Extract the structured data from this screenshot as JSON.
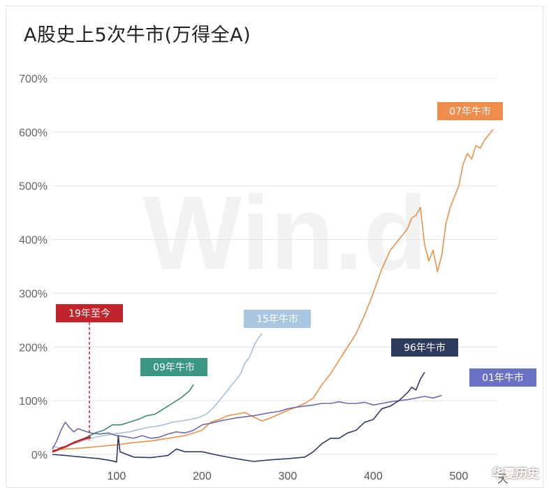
{
  "page": {
    "title": "A股史上5次牛市(万得全A)",
    "brand": "华夏历史",
    "watermark": "Win.d"
  },
  "chart_data": {
    "type": "line",
    "title": "A股史上5次牛市(万得全A)",
    "xlabel": "",
    "ylabel": "",
    "x_unit": "天",
    "xlim": [
      25,
      545
    ],
    "ylim": [
      -5,
      700
    ],
    "yticks": [
      "0%",
      "100%",
      "200%",
      "300%",
      "400%",
      "500%",
      "600%",
      "700%"
    ],
    "xticks": [
      "100",
      "200",
      "300",
      "400",
      "500"
    ],
    "grid": true,
    "legend": "inline labels",
    "series": [
      {
        "name": "96年牛市",
        "color": "#2f3b5e",
        "points": [
          [
            25,
            0
          ],
          [
            40,
            -2
          ],
          [
            60,
            -5
          ],
          [
            80,
            -8
          ],
          [
            95,
            -12
          ],
          [
            100,
            -14
          ],
          [
            102,
            35
          ],
          [
            104,
            5
          ],
          [
            120,
            -5
          ],
          [
            140,
            -6
          ],
          [
            160,
            -2
          ],
          [
            170,
            10
          ],
          [
            180,
            5
          ],
          [
            200,
            5
          ],
          [
            220,
            -2
          ],
          [
            240,
            -8
          ],
          [
            260,
            -13
          ],
          [
            280,
            -10
          ],
          [
            300,
            -8
          ],
          [
            320,
            -5
          ],
          [
            330,
            5
          ],
          [
            340,
            20
          ],
          [
            350,
            30
          ],
          [
            360,
            30
          ],
          [
            370,
            40
          ],
          [
            380,
            45
          ],
          [
            390,
            60
          ],
          [
            400,
            65
          ],
          [
            410,
            85
          ],
          [
            420,
            90
          ],
          [
            430,
            100
          ],
          [
            440,
            115
          ],
          [
            445,
            125
          ],
          [
            450,
            120
          ],
          [
            455,
            140
          ],
          [
            460,
            153
          ]
        ]
      },
      {
        "name": "01年牛市",
        "color": "#6d6ca8",
        "points": [
          [
            25,
            10
          ],
          [
            30,
            25
          ],
          [
            35,
            45
          ],
          [
            40,
            60
          ],
          [
            45,
            50
          ],
          [
            50,
            42
          ],
          [
            55,
            48
          ],
          [
            60,
            45
          ],
          [
            70,
            40
          ],
          [
            80,
            38
          ],
          [
            90,
            40
          ],
          [
            100,
            35
          ],
          [
            110,
            33
          ],
          [
            120,
            30
          ],
          [
            130,
            35
          ],
          [
            140,
            30
          ],
          [
            150,
            32
          ],
          [
            160,
            38
          ],
          [
            170,
            42
          ],
          [
            180,
            40
          ],
          [
            190,
            45
          ],
          [
            200,
            55
          ],
          [
            210,
            58
          ],
          [
            220,
            62
          ],
          [
            230,
            65
          ],
          [
            240,
            68
          ],
          [
            250,
            70
          ],
          [
            260,
            72
          ],
          [
            270,
            75
          ],
          [
            280,
            78
          ],
          [
            290,
            80
          ],
          [
            300,
            85
          ],
          [
            310,
            88
          ],
          [
            320,
            90
          ],
          [
            330,
            92
          ],
          [
            340,
            95
          ],
          [
            350,
            95
          ],
          [
            360,
            98
          ],
          [
            370,
            95
          ],
          [
            380,
            95
          ],
          [
            390,
            97
          ],
          [
            400,
            92
          ],
          [
            410,
            95
          ],
          [
            420,
            98
          ],
          [
            430,
            100
          ],
          [
            440,
            102
          ],
          [
            450,
            105
          ],
          [
            460,
            108
          ],
          [
            470,
            105
          ],
          [
            480,
            110
          ]
        ]
      },
      {
        "name": "07年牛市",
        "color": "#e8914a",
        "points": [
          [
            25,
            8
          ],
          [
            40,
            10
          ],
          [
            60,
            12
          ],
          [
            80,
            15
          ],
          [
            100,
            18
          ],
          [
            120,
            22
          ],
          [
            140,
            25
          ],
          [
            160,
            30
          ],
          [
            180,
            35
          ],
          [
            200,
            45
          ],
          [
            210,
            60
          ],
          [
            220,
            65
          ],
          [
            230,
            72
          ],
          [
            240,
            75
          ],
          [
            250,
            78
          ],
          [
            260,
            70
          ],
          [
            270,
            62
          ],
          [
            280,
            68
          ],
          [
            290,
            75
          ],
          [
            300,
            82
          ],
          [
            310,
            88
          ],
          [
            320,
            95
          ],
          [
            330,
            105
          ],
          [
            340,
            130
          ],
          [
            350,
            150
          ],
          [
            360,
            175
          ],
          [
            370,
            200
          ],
          [
            380,
            225
          ],
          [
            390,
            260
          ],
          [
            400,
            300
          ],
          [
            410,
            345
          ],
          [
            420,
            380
          ],
          [
            430,
            400
          ],
          [
            435,
            410
          ],
          [
            440,
            420
          ],
          [
            445,
            440
          ],
          [
            450,
            445
          ],
          [
            455,
            460
          ],
          [
            460,
            390
          ],
          [
            465,
            360
          ],
          [
            470,
            380
          ],
          [
            475,
            340
          ],
          [
            480,
            370
          ],
          [
            485,
            430
          ],
          [
            490,
            460
          ],
          [
            495,
            480
          ],
          [
            500,
            500
          ],
          [
            505,
            540
          ],
          [
            510,
            560
          ],
          [
            515,
            550
          ],
          [
            520,
            575
          ],
          [
            525,
            570
          ],
          [
            530,
            585
          ],
          [
            535,
            595
          ],
          [
            540,
            605
          ]
        ]
      },
      {
        "name": "09年牛市",
        "color": "#3d8b6e",
        "points": [
          [
            25,
            5
          ],
          [
            35,
            10
          ],
          [
            45,
            18
          ],
          [
            55,
            25
          ],
          [
            65,
            32
          ],
          [
            75,
            40
          ],
          [
            85,
            45
          ],
          [
            95,
            55
          ],
          [
            105,
            55
          ],
          [
            115,
            60
          ],
          [
            125,
            65
          ],
          [
            135,
            72
          ],
          [
            145,
            75
          ],
          [
            155,
            85
          ],
          [
            165,
            95
          ],
          [
            175,
            105
          ],
          [
            185,
            118
          ],
          [
            190,
            130
          ]
        ]
      },
      {
        "name": "15年牛市",
        "color": "#a7c0d8",
        "points": [
          [
            25,
            15
          ],
          [
            35,
            12
          ],
          [
            45,
            18
          ],
          [
            55,
            22
          ],
          [
            65,
            28
          ],
          [
            75,
            32
          ],
          [
            85,
            35
          ],
          [
            95,
            38
          ],
          [
            105,
            40
          ],
          [
            115,
            42
          ],
          [
            125,
            46
          ],
          [
            135,
            50
          ],
          [
            145,
            52
          ],
          [
            155,
            55
          ],
          [
            165,
            60
          ],
          [
            175,
            62
          ],
          [
            185,
            65
          ],
          [
            195,
            68
          ],
          [
            205,
            75
          ],
          [
            215,
            90
          ],
          [
            225,
            110
          ],
          [
            235,
            130
          ],
          [
            240,
            140
          ],
          [
            245,
            150
          ],
          [
            250,
            170
          ],
          [
            255,
            180
          ],
          [
            260,
            200
          ],
          [
            265,
            215
          ],
          [
            270,
            225
          ]
        ]
      },
      {
        "name": "19年至今",
        "color": "#c0222a",
        "points": [
          [
            25,
            5
          ],
          [
            30,
            8
          ],
          [
            35,
            12
          ],
          [
            40,
            14
          ],
          [
            45,
            18
          ],
          [
            50,
            22
          ],
          [
            55,
            25
          ],
          [
            60,
            28
          ],
          [
            65,
            30
          ],
          [
            70,
            32
          ]
        ]
      }
    ]
  },
  "labels": {
    "l96": {
      "text": "96年牛市",
      "color": "#2f3b5e"
    },
    "l01": {
      "text": "01年牛市",
      "color": "#6a71c4"
    },
    "l07": {
      "text": "07年牛市",
      "color": "#ee8d4c"
    },
    "l09": {
      "text": "09年牛市",
      "color": "#3a9783"
    },
    "l15": {
      "text": "15年牛市",
      "color": "#a8c6e0"
    },
    "l19": {
      "text": "19年至今",
      "color": "#c2242b"
    }
  }
}
